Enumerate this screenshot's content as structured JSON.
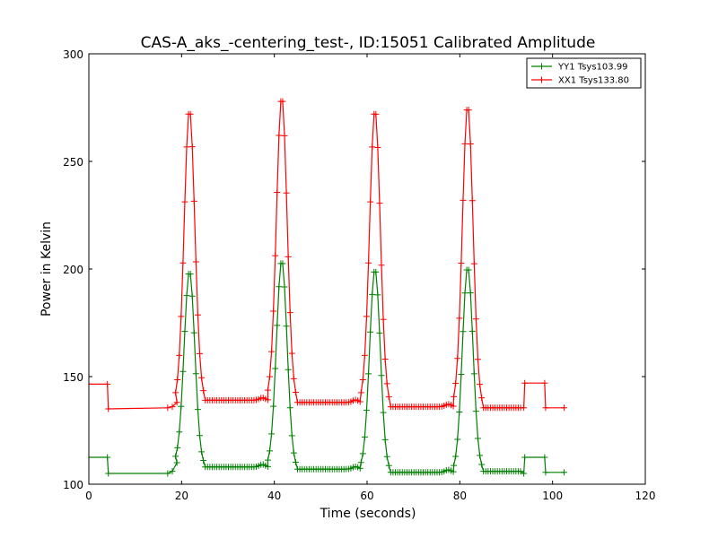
{
  "chart_data": {
    "type": "line",
    "title": "CAS-A_aks_-centering_test-, ID:15051 Calibrated Amplitude",
    "xlabel": "Time (seconds)",
    "ylabel": "Power in Kelvin",
    "xlim": [
      0,
      120
    ],
    "ylim": [
      100,
      300
    ],
    "xticks": [
      "0",
      "20",
      "40",
      "60",
      "80",
      "100",
      "120"
    ],
    "yticks": [
      "100",
      "150",
      "200",
      "250",
      "300"
    ],
    "grid": false,
    "legend_position": "top-right",
    "marker": "plus",
    "series": [
      {
        "name": "YY1 Tsys103.99",
        "color": "#008000",
        "base": [
          [
            0,
            112.5
          ],
          [
            4.0,
            112.5
          ],
          [
            4.2,
            105
          ],
          [
            17,
            105
          ],
          [
            18,
            106
          ],
          [
            19,
            110
          ]
        ],
        "peaks": [
          {
            "center": 21.7,
            "peak": 199,
            "baseline_after": 108
          },
          {
            "center": 41.6,
            "peak": 204,
            "baseline_after": 107
          },
          {
            "center": 61.7,
            "peak": 200,
            "baseline_after": 105.5
          },
          {
            "center": 81.7,
            "peak": 201,
            "baseline_after": 106
          }
        ],
        "tail": [
          [
            93.8,
            105
          ],
          [
            94.0,
            112.5
          ],
          [
            98.3,
            112.5
          ],
          [
            98.5,
            105.5
          ],
          [
            102.5,
            105.5
          ]
        ]
      },
      {
        "name": "XX1 Tsys133.80",
        "color": "#ff0000",
        "base": [
          [
            0,
            146.5
          ],
          [
            4.0,
            146.5
          ],
          [
            4.2,
            135
          ],
          [
            17,
            135.5
          ],
          [
            18,
            136
          ],
          [
            19,
            138
          ]
        ],
        "peaks": [
          {
            "center": 21.7,
            "peak": 274,
            "baseline_after": 139
          },
          {
            "center": 41.6,
            "peak": 280,
            "baseline_after": 138
          },
          {
            "center": 61.7,
            "peak": 274,
            "baseline_after": 136
          },
          {
            "center": 81.7,
            "peak": 276,
            "baseline_after": 135.5
          }
        ],
        "tail": [
          [
            93.8,
            135.5
          ],
          [
            94.0,
            147
          ],
          [
            98.3,
            147
          ],
          [
            98.5,
            135.5
          ],
          [
            102.5,
            135.5
          ]
        ]
      }
    ]
  }
}
